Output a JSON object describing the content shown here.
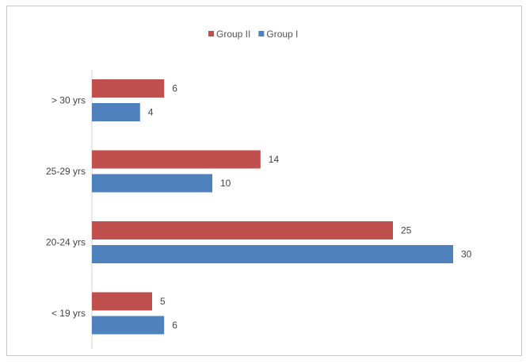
{
  "chart_data": {
    "type": "bar",
    "orientation": "horizontal",
    "title": "",
    "xlabel": "",
    "ylabel": "",
    "categories": [
      "> 30 yrs",
      "25-29 yrs",
      "20-24 yrs",
      "< 19 yrs"
    ],
    "series": [
      {
        "name": "Group II",
        "color": "#c0504d",
        "values": [
          6,
          14,
          25,
          5
        ]
      },
      {
        "name": "Group I",
        "color": "#4f81bd",
        "values": [
          4,
          10,
          30,
          6
        ]
      }
    ],
    "xlim": [
      0,
      30
    ],
    "grid": false,
    "legend": "top-center",
    "data_labels": true
  }
}
